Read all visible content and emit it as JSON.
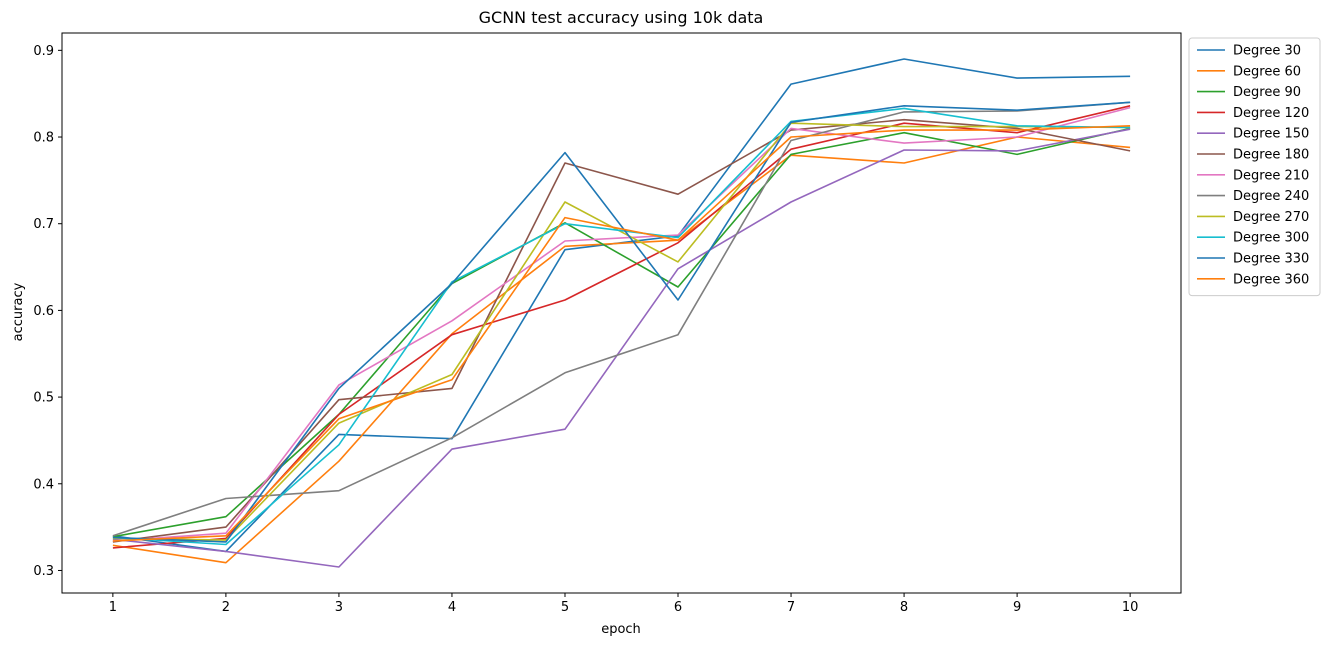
{
  "chart_data": {
    "type": "line",
    "title": "GCNN test accuracy using 10k data",
    "xlabel": "epoch",
    "ylabel": "accuracy",
    "x": [
      1,
      2,
      3,
      4,
      5,
      6,
      7,
      8,
      9,
      10
    ],
    "xlim": [
      0.55,
      10.45
    ],
    "ylim": [
      0.274,
      0.92
    ],
    "yticks": [
      0.3,
      0.4,
      0.5,
      0.6,
      0.7,
      0.8,
      0.9
    ],
    "grid": false,
    "legend_position": "outside-right-top",
    "series": [
      {
        "name": "Degree 30",
        "color": "#1f77b4",
        "values": [
          0.34,
          0.322,
          0.457,
          0.452,
          0.67,
          0.686,
          0.861,
          0.89,
          0.868,
          0.87
        ]
      },
      {
        "name": "Degree 60",
        "color": "#ff7f0e",
        "values": [
          0.329,
          0.309,
          0.426,
          0.573,
          0.674,
          0.681,
          0.779,
          0.77,
          0.8,
          0.788
        ]
      },
      {
        "name": "Degree 90",
        "color": "#2ca02c",
        "values": [
          0.339,
          0.362,
          0.48,
          0.631,
          0.701,
          0.627,
          0.78,
          0.805,
          0.78,
          0.81
        ]
      },
      {
        "name": "Degree 120",
        "color": "#d62728",
        "values": [
          0.326,
          0.337,
          0.48,
          0.572,
          0.612,
          0.678,
          0.786,
          0.816,
          0.805,
          0.836
        ]
      },
      {
        "name": "Degree 150",
        "color": "#9467bd",
        "values": [
          0.336,
          0.322,
          0.304,
          0.44,
          0.463,
          0.648,
          0.725,
          0.785,
          0.784,
          0.809
        ]
      },
      {
        "name": "Degree 180",
        "color": "#8c564b",
        "values": [
          0.333,
          0.35,
          0.497,
          0.51,
          0.77,
          0.734,
          0.808,
          0.82,
          0.81,
          0.784
        ]
      },
      {
        "name": "Degree 210",
        "color": "#e377c2",
        "values": [
          0.334,
          0.343,
          0.514,
          0.588,
          0.68,
          0.687,
          0.81,
          0.793,
          0.8,
          0.834
        ]
      },
      {
        "name": "Degree 240",
        "color": "#7f7f7f",
        "values": [
          0.34,
          0.383,
          0.392,
          0.453,
          0.528,
          0.572,
          0.796,
          0.829,
          0.83,
          0.84
        ]
      },
      {
        "name": "Degree 270",
        "color": "#bcbd22",
        "values": [
          0.337,
          0.335,
          0.47,
          0.526,
          0.725,
          0.656,
          0.816,
          0.812,
          0.812,
          0.811
        ]
      },
      {
        "name": "Degree 300",
        "color": "#17becf",
        "values": [
          0.338,
          0.33,
          0.445,
          0.633,
          0.7,
          0.684,
          0.818,
          0.833,
          0.813,
          0.811
        ]
      },
      {
        "name": "Degree 330",
        "color": "#1f77b4",
        "values": [
          0.338,
          0.333,
          0.51,
          0.631,
          0.782,
          0.612,
          0.817,
          0.836,
          0.831,
          0.84
        ]
      },
      {
        "name": "Degree 360",
        "color": "#ff7f0e",
        "values": [
          0.334,
          0.34,
          0.475,
          0.52,
          0.707,
          0.681,
          0.8,
          0.808,
          0.808,
          0.813
        ]
      }
    ]
  }
}
